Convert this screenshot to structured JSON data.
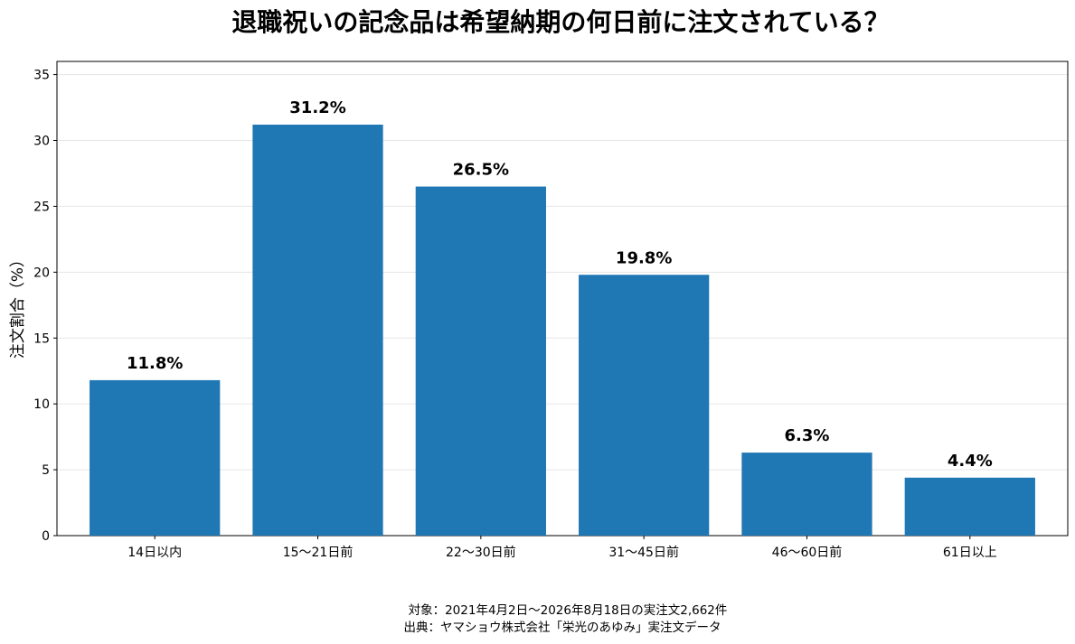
{
  "chart_data": {
    "type": "bar",
    "title": "退職祝いの記念品は希望納期の何日前に注文されている？",
    "xlabel": "",
    "ylabel": "注文割合（%）",
    "categories": [
      "14日以内",
      "15〜21日前",
      "22〜30日前",
      "31〜45日前",
      "46〜60日前",
      "61日以上"
    ],
    "values": [
      11.8,
      31.2,
      26.5,
      19.8,
      6.3,
      4.4
    ],
    "data_labels": [
      "11.8%",
      "31.2%",
      "26.5%",
      "19.8%",
      "6.3%",
      "4.4%"
    ],
    "yticks": [
      0,
      5,
      10,
      15,
      20,
      25,
      30,
      35
    ],
    "ylim": [
      0,
      36
    ],
    "grid": "horizontal",
    "bar_color": "#1f77b4"
  },
  "footnotes": [
    "対象：2021年4月2日〜2026年8月18日の実注文2,662件",
    "出典：ヤマショウ株式会社「栄光のあゆみ」実注文データ"
  ]
}
